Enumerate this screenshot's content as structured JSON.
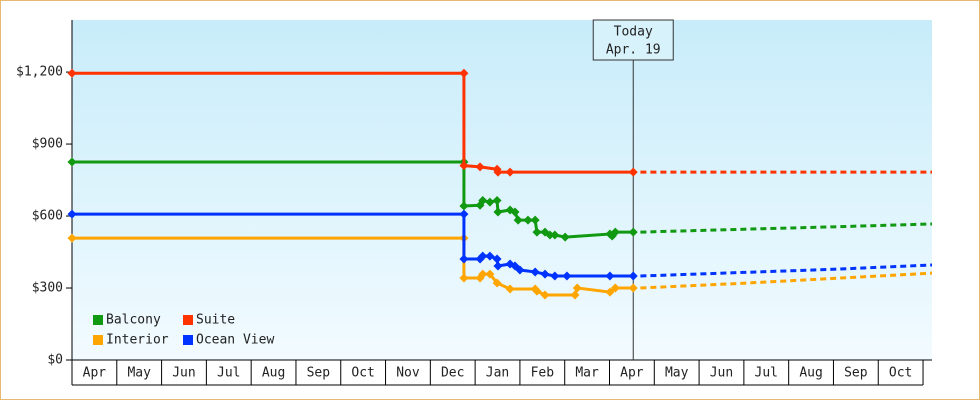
{
  "chart_data": {
    "type": "line",
    "categories": [
      "Apr",
      "May",
      "Jun",
      "Jul",
      "Aug",
      "Sep",
      "Oct",
      "Nov",
      "Dec",
      "Jan",
      "Feb",
      "Mar",
      "Apr",
      "May",
      "Jun",
      "Jul",
      "Aug",
      "Sep",
      "Oct"
    ],
    "xlim": [
      0,
      19.2
    ],
    "ylim": [
      0,
      1417
    ],
    "yticks": [
      {
        "value": 0,
        "label": "$0"
      },
      {
        "value": 300,
        "label": "$300"
      },
      {
        "value": 600,
        "label": "$600"
      },
      {
        "value": 900,
        "label": "$900"
      },
      {
        "value": 1200,
        "label": "$1,200"
      }
    ],
    "legend": "bottom-left",
    "annotation": {
      "lines": [
        "Today",
        "Apr. 19"
      ],
      "x": 12.53
    },
    "series": [
      {
        "name": "Balcony",
        "color": "#119911",
        "x": [
          0,
          8.75,
          8.75,
          9.11,
          9.17,
          9.33,
          9.49,
          9.51,
          9.78,
          9.89,
          9.96,
          10.18,
          10.34,
          10.38,
          10.56,
          10.67,
          10.78,
          11.01,
          12.01,
          12.06,
          12.13,
          12.53
        ],
        "values": [
          825,
          825,
          642,
          645,
          665,
          658,
          665,
          617,
          625,
          617,
          583,
          583,
          583,
          533,
          533,
          521,
          521,
          512,
          525,
          517,
          533,
          533
        ],
        "forecast_x": [
          12.69,
          15.0,
          17.0,
          19.2
        ],
        "forecast_values": [
          533,
          545,
          555,
          567
        ]
      },
      {
        "name": "Suite",
        "color": "#ff3300",
        "x": [
          0,
          8.75,
          8.75,
          9.11,
          9.49,
          9.51,
          9.78,
          12.53
        ],
        "values": [
          1195,
          1195,
          810,
          805,
          795,
          783,
          783,
          783
        ],
        "forecast_x": [
          12.69,
          19.2
        ],
        "forecast_values": [
          783,
          783
        ]
      },
      {
        "name": "Interior",
        "color": "#ffa500",
        "x": [
          0,
          8.75,
          8.75,
          9.11,
          9.17,
          9.33,
          9.49,
          9.78,
          10.34,
          10.38,
          10.56,
          11.23,
          11.28,
          12.01,
          12.13,
          12.53
        ],
        "values": [
          508,
          508,
          342,
          342,
          358,
          358,
          321,
          296,
          296,
          287,
          271,
          271,
          300,
          283,
          300,
          300
        ],
        "forecast_x": [
          12.69,
          15.0,
          17.0,
          19.2
        ],
        "forecast_values": [
          300,
          320,
          340,
          362
        ]
      },
      {
        "name": "Ocean View",
        "color": "#0033ff",
        "x": [
          0,
          8.75,
          8.75,
          9.11,
          9.17,
          9.33,
          9.49,
          9.51,
          9.78,
          9.89,
          10.0,
          10.34,
          10.56,
          10.78,
          11.05,
          12.01,
          12.53
        ],
        "values": [
          608,
          608,
          421,
          421,
          433,
          433,
          421,
          392,
          400,
          392,
          375,
          367,
          358,
          350,
          350,
          350,
          350
        ],
        "forecast_x": [
          12.69,
          15.0,
          17.0,
          19.2
        ],
        "forecast_values": [
          350,
          365,
          378,
          396
        ]
      }
    ]
  }
}
